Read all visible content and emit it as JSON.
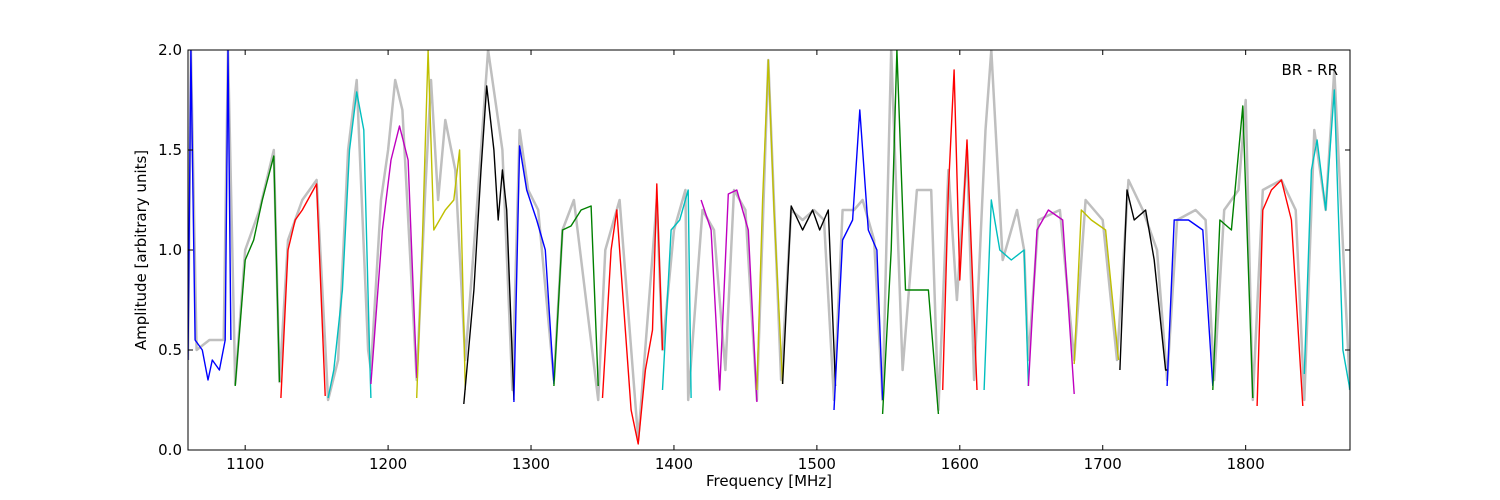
{
  "chart_data": {
    "type": "line",
    "title": "",
    "xlabel": "Frequency [MHz]",
    "ylabel": "Amplitude [arbitrary units]",
    "xlim": [
      1060,
      1873
    ],
    "ylim": [
      0.0,
      2.0
    ],
    "xticks": [
      1100,
      1200,
      1300,
      1400,
      1500,
      1600,
      1700,
      1800
    ],
    "xtick_labels": [
      "1100",
      "1200",
      "1300",
      "1400",
      "1500",
      "1600",
      "1700",
      "1800"
    ],
    "yticks": [
      0.0,
      0.5,
      1.0,
      1.5,
      2.0
    ],
    "ytick_labels": [
      "0.0",
      "0.5",
      "1.0",
      "1.5",
      "2.0"
    ],
    "grid": false,
    "annotation": "BR - RR",
    "envelope": {
      "color": "#bfbfbf",
      "points": [
        [
          1060,
          0.45
        ],
        [
          1062,
          2.0
        ],
        [
          1066,
          0.5
        ],
        [
          1075,
          0.55
        ],
        [
          1085,
          0.55
        ],
        [
          1088,
          2.0
        ],
        [
          1093,
          0.33
        ],
        [
          1100,
          1.0
        ],
        [
          1110,
          1.2
        ],
        [
          1120,
          1.5
        ],
        [
          1124,
          0.34
        ],
        [
          1130,
          1.05
        ],
        [
          1140,
          1.25
        ],
        [
          1150,
          1.35
        ],
        [
          1158,
          0.25
        ],
        [
          1165,
          0.45
        ],
        [
          1172,
          1.5
        ],
        [
          1178,
          1.85
        ],
        [
          1186,
          0.5
        ],
        [
          1188,
          0.4
        ],
        [
          1195,
          1.25
        ],
        [
          1200,
          1.5
        ],
        [
          1205,
          1.85
        ],
        [
          1210,
          1.7
        ],
        [
          1220,
          0.35
        ],
        [
          1226,
          1.3
        ],
        [
          1230,
          1.85
        ],
        [
          1235,
          1.25
        ],
        [
          1240,
          1.65
        ],
        [
          1247,
          1.4
        ],
        [
          1254,
          0.45
        ],
        [
          1262,
          1.2
        ],
        [
          1270,
          2.0
        ],
        [
          1276,
          1.7
        ],
        [
          1280,
          1.5
        ],
        [
          1287,
          0.3
        ],
        [
          1292,
          1.6
        ],
        [
          1298,
          1.3
        ],
        [
          1305,
          1.2
        ],
        [
          1316,
          0.35
        ],
        [
          1322,
          1.1
        ],
        [
          1330,
          1.25
        ],
        [
          1347,
          0.25
        ],
        [
          1352,
          1.0
        ],
        [
          1362,
          1.25
        ],
        [
          1375,
          0.05
        ],
        [
          1388,
          1.25
        ],
        [
          1392,
          0.5
        ],
        [
          1400,
          1.1
        ],
        [
          1408,
          1.3
        ],
        [
          1410,
          0.25
        ],
        [
          1420,
          1.2
        ],
        [
          1428,
          1.1
        ],
        [
          1436,
          0.4
        ],
        [
          1442,
          1.3
        ],
        [
          1450,
          1.2
        ],
        [
          1458,
          0.25
        ],
        [
          1466,
          1.95
        ],
        [
          1475,
          0.35
        ],
        [
          1482,
          1.2
        ],
        [
          1490,
          1.15
        ],
        [
          1498,
          1.2
        ],
        [
          1505,
          1.15
        ],
        [
          1512,
          0.25
        ],
        [
          1518,
          1.2
        ],
        [
          1526,
          1.2
        ],
        [
          1532,
          1.25
        ],
        [
          1540,
          1.05
        ],
        [
          1546,
          0.25
        ],
        [
          1552,
          2.0
        ],
        [
          1560,
          0.4
        ],
        [
          1570,
          1.3
        ],
        [
          1580,
          1.3
        ],
        [
          1585,
          0.2
        ],
        [
          1592,
          1.4
        ],
        [
          1598,
          0.75
        ],
        [
          1605,
          1.5
        ],
        [
          1610,
          0.35
        ],
        [
          1618,
          1.6
        ],
        [
          1622,
          2.0
        ],
        [
          1630,
          0.95
        ],
        [
          1640,
          1.2
        ],
        [
          1645,
          1.0
        ],
        [
          1648,
          0.45
        ],
        [
          1655,
          1.15
        ],
        [
          1670,
          1.2
        ],
        [
          1680,
          0.45
        ],
        [
          1688,
          1.25
        ],
        [
          1700,
          1.15
        ],
        [
          1710,
          0.45
        ],
        [
          1718,
          1.35
        ],
        [
          1728,
          1.2
        ],
        [
          1738,
          1.0
        ],
        [
          1745,
          0.35
        ],
        [
          1752,
          1.15
        ],
        [
          1765,
          1.2
        ],
        [
          1772,
          1.15
        ],
        [
          1778,
          0.35
        ],
        [
          1785,
          1.2
        ],
        [
          1795,
          1.3
        ],
        [
          1800,
          1.75
        ],
        [
          1805,
          0.25
        ],
        [
          1812,
          1.3
        ],
        [
          1825,
          1.35
        ],
        [
          1835,
          1.2
        ],
        [
          1841,
          0.25
        ],
        [
          1848,
          1.6
        ],
        [
          1856,
          1.2
        ],
        [
          1862,
          1.9
        ],
        [
          1873,
          0.3
        ]
      ]
    },
    "series": [
      {
        "color": "#0000ff",
        "points": [
          [
            1060,
            0.45
          ],
          [
            1062,
            2.0
          ],
          [
            1065,
            0.55
          ],
          [
            1070,
            0.5
          ],
          [
            1074,
            0.35
          ],
          [
            1077,
            0.45
          ],
          [
            1082,
            0.4
          ],
          [
            1086,
            0.55
          ],
          [
            1088,
            2.0
          ],
          [
            1090,
            0.55
          ]
        ]
      },
      {
        "color": "#008000",
        "points": [
          [
            1093,
            0.32
          ],
          [
            1100,
            0.95
          ],
          [
            1106,
            1.05
          ],
          [
            1112,
            1.25
          ],
          [
            1120,
            1.47
          ],
          [
            1124,
            0.34
          ]
        ]
      },
      {
        "color": "#ff0000",
        "points": [
          [
            1125,
            0.26
          ],
          [
            1130,
            1.0
          ],
          [
            1135,
            1.15
          ],
          [
            1140,
            1.2
          ],
          [
            1150,
            1.33
          ],
          [
            1156,
            0.27
          ]
        ]
      },
      {
        "color": "#00bfbf",
        "points": [
          [
            1158,
            0.26
          ],
          [
            1162,
            0.4
          ],
          [
            1168,
            0.8
          ],
          [
            1173,
            1.5
          ],
          [
            1178,
            1.79
          ],
          [
            1183,
            1.6
          ],
          [
            1187,
            0.5
          ],
          [
            1188,
            0.26
          ]
        ]
      },
      {
        "color": "#bf00bf",
        "points": [
          [
            1188,
            0.33
          ],
          [
            1196,
            1.1
          ],
          [
            1202,
            1.45
          ],
          [
            1208,
            1.62
          ],
          [
            1214,
            1.45
          ],
          [
            1220,
            0.36
          ]
        ]
      },
      {
        "color": "#bfbf00",
        "points": [
          [
            1220,
            0.26
          ],
          [
            1224,
            1.05
          ],
          [
            1228,
            2.0
          ],
          [
            1232,
            1.1
          ],
          [
            1240,
            1.2
          ],
          [
            1246,
            1.25
          ],
          [
            1250,
            1.5
          ],
          [
            1254,
            0.3
          ]
        ]
      },
      {
        "color": "#000000",
        "points": [
          [
            1253,
            0.23
          ],
          [
            1260,
            0.8
          ],
          [
            1265,
            1.4
          ],
          [
            1269,
            1.82
          ],
          [
            1274,
            1.5
          ],
          [
            1277,
            1.15
          ],
          [
            1280,
            1.4
          ],
          [
            1283,
            1.2
          ],
          [
            1288,
            0.25
          ]
        ]
      },
      {
        "color": "#0000ff",
        "points": [
          [
            1288,
            0.24
          ],
          [
            1292,
            1.52
          ],
          [
            1297,
            1.3
          ],
          [
            1304,
            1.15
          ],
          [
            1310,
            1.0
          ],
          [
            1316,
            0.33
          ]
        ]
      },
      {
        "color": "#008000",
        "points": [
          [
            1316,
            0.32
          ],
          [
            1322,
            1.1
          ],
          [
            1328,
            1.12
          ],
          [
            1335,
            1.2
          ],
          [
            1342,
            1.22
          ],
          [
            1347,
            0.32
          ]
        ]
      },
      {
        "color": "#ff0000",
        "points": [
          [
            1350,
            0.26
          ],
          [
            1356,
            1.0
          ],
          [
            1360,
            1.2
          ],
          [
            1365,
            0.7
          ],
          [
            1370,
            0.2
          ],
          [
            1375,
            0.03
          ],
          [
            1380,
            0.4
          ],
          [
            1385,
            0.6
          ],
          [
            1388,
            1.33
          ],
          [
            1392,
            0.5
          ]
        ]
      },
      {
        "color": "#00bfbf",
        "points": [
          [
            1392,
            0.3
          ],
          [
            1398,
            1.1
          ],
          [
            1404,
            1.15
          ],
          [
            1410,
            1.3
          ],
          [
            1412,
            0.26
          ]
        ]
      },
      {
        "color": "#bf00bf",
        "points": [
          [
            1419,
            1.25
          ],
          [
            1426,
            1.1
          ],
          [
            1432,
            0.3
          ],
          [
            1438,
            1.28
          ],
          [
            1444,
            1.3
          ],
          [
            1452,
            1.1
          ],
          [
            1458,
            0.24
          ]
        ]
      },
      {
        "color": "#bfbf00",
        "points": [
          [
            1458,
            0.3
          ],
          [
            1462,
            1.25
          ],
          [
            1466,
            1.95
          ],
          [
            1470,
            1.2
          ],
          [
            1476,
            0.33
          ]
        ]
      },
      {
        "color": "#000000",
        "points": [
          [
            1476,
            0.33
          ],
          [
            1482,
            1.22
          ],
          [
            1490,
            1.1
          ],
          [
            1497,
            1.2
          ],
          [
            1502,
            1.1
          ],
          [
            1508,
            1.2
          ],
          [
            1513,
            0.32
          ]
        ]
      },
      {
        "color": "#0000ff",
        "points": [
          [
            1512,
            0.2
          ],
          [
            1518,
            1.05
          ],
          [
            1525,
            1.15
          ],
          [
            1530,
            1.7
          ],
          [
            1536,
            1.1
          ],
          [
            1542,
            1.0
          ],
          [
            1546,
            0.25
          ]
        ]
      },
      {
        "color": "#008000",
        "points": [
          [
            1546,
            0.18
          ],
          [
            1552,
            1.0
          ],
          [
            1556,
            2.0
          ],
          [
            1562,
            0.8
          ],
          [
            1570,
            0.8
          ],
          [
            1578,
            0.8
          ],
          [
            1585,
            0.18
          ]
        ]
      },
      {
        "color": "#ff0000",
        "points": [
          [
            1588,
            0.3
          ],
          [
            1592,
            1.3
          ],
          [
            1596,
            1.9
          ],
          [
            1600,
            0.85
          ],
          [
            1605,
            1.55
          ],
          [
            1612,
            0.3
          ]
        ]
      },
      {
        "color": "#00bfbf",
        "points": [
          [
            1617,
            0.3
          ],
          [
            1622,
            1.25
          ],
          [
            1628,
            1.0
          ],
          [
            1636,
            0.95
          ],
          [
            1645,
            1.0
          ],
          [
            1648,
            0.32
          ]
        ]
      },
      {
        "color": "#bf00bf",
        "points": [
          [
            1648,
            0.32
          ],
          [
            1654,
            1.1
          ],
          [
            1662,
            1.2
          ],
          [
            1672,
            1.15
          ],
          [
            1680,
            0.28
          ]
        ]
      },
      {
        "color": "#bfbf00",
        "points": [
          [
            1680,
            0.43
          ],
          [
            1685,
            1.2
          ],
          [
            1692,
            1.15
          ],
          [
            1702,
            1.1
          ],
          [
            1711,
            0.45
          ]
        ]
      },
      {
        "color": "#000000",
        "points": [
          [
            1712,
            0.4
          ],
          [
            1717,
            1.3
          ],
          [
            1722,
            1.15
          ],
          [
            1730,
            1.2
          ],
          [
            1736,
            0.95
          ],
          [
            1744,
            0.4
          ],
          [
            1746,
            0.4
          ]
        ]
      },
      {
        "color": "#0000ff",
        "points": [
          [
            1745,
            0.32
          ],
          [
            1750,
            1.15
          ],
          [
            1760,
            1.15
          ],
          [
            1770,
            1.1
          ],
          [
            1777,
            0.32
          ]
        ]
      },
      {
        "color": "#008000",
        "points": [
          [
            1777,
            0.3
          ],
          [
            1782,
            1.15
          ],
          [
            1790,
            1.1
          ],
          [
            1798,
            1.72
          ],
          [
            1805,
            0.26
          ]
        ]
      },
      {
        "color": "#ff0000",
        "points": [
          [
            1808,
            0.22
          ],
          [
            1812,
            1.2
          ],
          [
            1818,
            1.3
          ],
          [
            1825,
            1.35
          ],
          [
            1832,
            1.15
          ],
          [
            1840,
            0.22
          ]
        ]
      },
      {
        "color": "#00bfbf",
        "points": [
          [
            1841,
            0.38
          ],
          [
            1846,
            1.4
          ],
          [
            1850,
            1.55
          ],
          [
            1856,
            1.2
          ],
          [
            1862,
            1.8
          ],
          [
            1868,
            0.5
          ],
          [
            1873,
            0.3
          ]
        ]
      }
    ]
  }
}
